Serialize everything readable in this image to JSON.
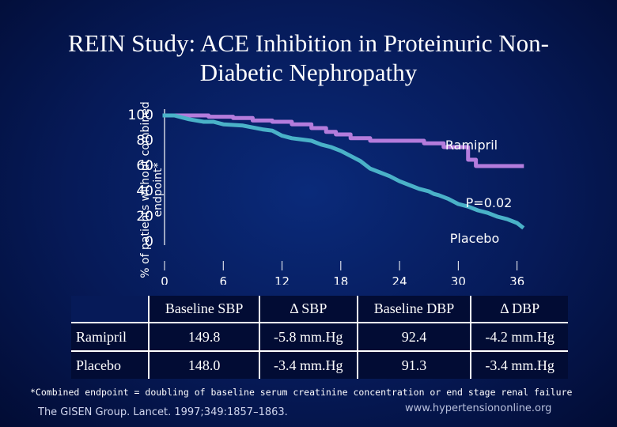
{
  "title": "REIN Study: ACE Inhibition in Proteinuric Non-Diabetic Nephropathy",
  "chart_data": {
    "type": "line",
    "title": "REIN Study: ACE Inhibition in Proteinuric Non-Diabetic Nephropathy",
    "ylabel": "% of patients without combined endpoint*",
    "xlabel": "",
    "ylim": [
      0,
      100
    ],
    "xlim": [
      0,
      37
    ],
    "yticks": [
      "100",
      "80",
      "60",
      "40",
      "20",
      "0"
    ],
    "ytick_values": [
      100,
      80,
      60,
      40,
      20,
      0
    ],
    "xticks": [
      "0",
      "6",
      "12",
      "18",
      "24",
      "30",
      "36"
    ],
    "xtick_values": [
      0,
      6,
      12,
      18,
      24,
      30,
      36
    ],
    "annotations": {
      "ramipril": "Ramipril",
      "pvalue": "P=0.02",
      "placebo": "Placebo"
    },
    "series": [
      {
        "name": "Ramipril",
        "color": "#b47cdc",
        "step": true,
        "x": [
          0,
          2.5,
          4.5,
          7,
          9,
          11,
          13,
          15,
          16.5,
          17.5,
          19,
          21,
          23,
          25,
          26.5,
          28.5,
          29.5,
          31,
          31.8,
          33.5,
          35,
          36.5
        ],
        "y": [
          100,
          100,
          99,
          98,
          96,
          95,
          93,
          90,
          87,
          85,
          82,
          80,
          80,
          80,
          78,
          75,
          75,
          65,
          60,
          60,
          60,
          60
        ]
      },
      {
        "name": "Placebo",
        "color": "#4ab2c8",
        "step": false,
        "x": [
          0,
          1,
          2.5,
          4,
          5,
          6,
          8,
          10,
          11,
          12,
          13,
          14,
          15,
          16,
          17,
          18,
          19,
          20,
          21,
          22,
          23,
          24,
          25,
          26,
          27,
          27.5,
          28,
          29,
          30,
          31,
          32,
          33,
          34,
          35,
          36,
          36.5
        ],
        "y": [
          100,
          100,
          97,
          95,
          95,
          93,
          92,
          89,
          88,
          84,
          82,
          81,
          80,
          77,
          75,
          72,
          68,
          64,
          58,
          55,
          52,
          48,
          45,
          42,
          40,
          38,
          37,
          34,
          30,
          28,
          25,
          23,
          20,
          18,
          15,
          12
        ]
      }
    ]
  },
  "table": {
    "headers": [
      "",
      "Baseline SBP",
      "Δ SBP",
      "Baseline DBP",
      "Δ DBP"
    ],
    "rows": [
      [
        "Ramipril",
        "149.8",
        "-5.8 mm.Hg",
        "92.4",
        "-4.2 mm.Hg"
      ],
      [
        "Placebo",
        "148.0",
        "-3.4 mm.Hg",
        "91.3",
        "-3.4 mm.Hg"
      ]
    ]
  },
  "footnote": "*Combined endpoint = doubling of baseline serum creatinine concentration or end stage renal failure",
  "citation": "The GISEN Group. Lancet. 1997;349:1857–1863.",
  "url": "www.hypertensiononline.org"
}
